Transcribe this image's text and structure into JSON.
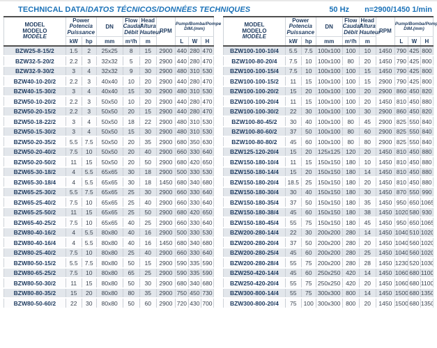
{
  "header": {
    "title_main": "TECHNICAL DATA/",
    "title_intl": "DATOS TÉCNICOS/DONNÉES TECHNIQUES",
    "frequency": "50 Hz",
    "speed": "n=2900/1450 1/min",
    "accent_blue": "#1b72b8",
    "navy_text": "#1d3a5f",
    "alt_row_bg": "#e2e6eb"
  },
  "columns": {
    "model_en": "MODEL",
    "model_es": "MODELO",
    "model_fr": "MODÈLE",
    "power_en": "Power",
    "power_es": "Potencia",
    "power_fr": "Puissance",
    "unit_kw": "kW",
    "unit_hp": "hp",
    "dn": "DN",
    "unit_mm": "mm",
    "flow_en": "Flow",
    "flow_es": "Caudal",
    "flow_fr": "Débit",
    "unit_flow": "m³/h",
    "head_en": "Head",
    "head_es": "Altura",
    "head_fr": "Hauteur",
    "unit_m": "m",
    "rpm": "RPM",
    "dim_title": "Pump/Bomba/Pompe",
    "dim_sub": "DIM.(mm)",
    "dim_l": "L",
    "dim_w": "W",
    "dim_h": "H"
  },
  "left_rows": [
    [
      "BZW25-8-15/2",
      "1.5",
      "2",
      "25x25",
      "8",
      "15",
      "2900",
      "440",
      "280",
      "470"
    ],
    [
      "BZW32-5-20/2",
      "2.2",
      "3",
      "32x32",
      "5",
      "20",
      "2900",
      "440",
      "280",
      "470"
    ],
    [
      "BZW32-9-30/2",
      "3",
      "4",
      "32x32",
      "9",
      "30",
      "2900",
      "480",
      "310",
      "530"
    ],
    [
      "BZW40-10-20/2",
      "2.2",
      "3",
      "40x40",
      "10",
      "20",
      "2900",
      "440",
      "280",
      "470"
    ],
    [
      "BZW40-15-30/2",
      "3",
      "4",
      "40x40",
      "15",
      "30",
      "2900",
      "480",
      "310",
      "530"
    ],
    [
      "BZW50-10-20/2",
      "2.2",
      "3",
      "50x50",
      "10",
      "20",
      "2900",
      "440",
      "280",
      "470"
    ],
    [
      "BZW50-20-15/2",
      "2.2",
      "3",
      "50x50",
      "20",
      "15",
      "2900",
      "440",
      "280",
      "470"
    ],
    [
      "BZW50-18-22/2",
      "3",
      "4",
      "50x50",
      "18",
      "22",
      "2900",
      "480",
      "310",
      "530"
    ],
    [
      "BZW50-15-30/2",
      "3",
      "4",
      "50x50",
      "15",
      "30",
      "2900",
      "480",
      "310",
      "530"
    ],
    [
      "BZW50-20-35/2",
      "5.5",
      "7.5",
      "50x50",
      "20",
      "35",
      "2900",
      "680",
      "350",
      "630"
    ],
    [
      "BZW50-20-40/2",
      "7.5",
      "10",
      "50x50",
      "20",
      "40",
      "2900",
      "660",
      "330",
      "640"
    ],
    [
      "BZW50-20-50/2",
      "11",
      "15",
      "50x50",
      "20",
      "50",
      "2900",
      "680",
      "420",
      "650"
    ],
    [
      "BZW65-30-18/2",
      "4",
      "5.5",
      "65x65",
      "30",
      "18",
      "2900",
      "500",
      "330",
      "530"
    ],
    [
      "BZW65-30-18/4",
      "4",
      "5.5",
      "65x65",
      "30",
      "18",
      "1450",
      "680",
      "340",
      "680"
    ],
    [
      "BZW65-25-30/2",
      "5.5",
      "7.5",
      "65x65",
      "25",
      "30",
      "2900",
      "660",
      "330",
      "640"
    ],
    [
      "BZW65-25-40/2",
      "7.5",
      "10",
      "65x65",
      "25",
      "40",
      "2900",
      "660",
      "330",
      "640"
    ],
    [
      "BZW65-25-50/2",
      "11",
      "15",
      "65x65",
      "25",
      "50",
      "2900",
      "680",
      "420",
      "650"
    ],
    [
      "BZW65-40-25/2",
      "7.5",
      "10",
      "65x65",
      "40",
      "25",
      "2900",
      "660",
      "330",
      "640"
    ],
    [
      "BZW80-40-16/2",
      "4",
      "5.5",
      "80x80",
      "40",
      "16",
      "2900",
      "500",
      "330",
      "530"
    ],
    [
      "BZW80-40-16/4",
      "4",
      "5.5",
      "80x80",
      "40",
      "16",
      "1450",
      "680",
      "340",
      "680"
    ],
    [
      "BZW80-25-40/2",
      "7.5",
      "10",
      "80x80",
      "25",
      "40",
      "2900",
      "660",
      "330",
      "640"
    ],
    [
      "BZW80-50-15/2",
      "5.5",
      "7.5",
      "80x80",
      "50",
      "15",
      "2900",
      "590",
      "335",
      "590"
    ],
    [
      "BZW80-65-25/2",
      "7.5",
      "10",
      "80x80",
      "65",
      "25",
      "2900",
      "590",
      "335",
      "590"
    ],
    [
      "BZW80-50-30/2",
      "11",
      "15",
      "80x80",
      "50",
      "30",
      "2900",
      "680",
      "340",
      "680"
    ],
    [
      "BZW80-80-35/2",
      "15",
      "20",
      "80x80",
      "80",
      "35",
      "2900",
      "750",
      "450",
      "730"
    ],
    [
      "BZW80-50-60/2",
      "22",
      "30",
      "80x80",
      "50",
      "60",
      "2900",
      "720",
      "430",
      "700"
    ]
  ],
  "right_rows": [
    [
      "BZW100-100-10/4",
      "5.5",
      "7.5",
      "100x100",
      "100",
      "10",
      "1450",
      "790",
      "425",
      "800"
    ],
    [
      "BZW100-80-20/4",
      "7.5",
      "10",
      "100x100",
      "80",
      "20",
      "1450",
      "790",
      "425",
      "800"
    ],
    [
      "BZW100-100-15/4",
      "7.5",
      "10",
      "100x100",
      "100",
      "15",
      "1450",
      "790",
      "425",
      "800"
    ],
    [
      "BZW100-100-15/2",
      "11",
      "15",
      "100x100",
      "100",
      "15",
      "2900",
      "790",
      "425",
      "800"
    ],
    [
      "BZW100-100-20/2",
      "15",
      "20",
      "100x100",
      "100",
      "20",
      "2900",
      "860",
      "450",
      "820"
    ],
    [
      "BZW100-100-20/4",
      "11",
      "15",
      "100x100",
      "100",
      "20",
      "1450",
      "810",
      "450",
      "880"
    ],
    [
      "BZW100-100-30/2",
      "22",
      "30",
      "100x100",
      "100",
      "30",
      "2900",
      "860",
      "450",
      "820"
    ],
    [
      "BZW100-80-45/2",
      "30",
      "40",
      "100x100",
      "80",
      "45",
      "2900",
      "825",
      "550",
      "840"
    ],
    [
      "BZW100-80-60/2",
      "37",
      "50",
      "100x100",
      "80",
      "60",
      "2900",
      "825",
      "550",
      "840"
    ],
    [
      "BZW100-80-80/2",
      "45",
      "60",
      "100x100",
      "80",
      "80",
      "2900",
      "825",
      "550",
      "840"
    ],
    [
      "BZW125-120-20/4",
      "15",
      "20",
      "125x125",
      "120",
      "20",
      "1450",
      "810",
      "450",
      "880"
    ],
    [
      "BZW150-180-10/4",
      "11",
      "15",
      "150x150",
      "180",
      "10",
      "1450",
      "810",
      "450",
      "880"
    ],
    [
      "BZW150-180-14/4",
      "15",
      "20",
      "150x150",
      "180",
      "14",
      "1450",
      "810",
      "450",
      "880"
    ],
    [
      "BZW150-180-20/4",
      "18.5",
      "25",
      "150x150",
      "180",
      "20",
      "1450",
      "810",
      "450",
      "880"
    ],
    [
      "BZW150-180-30/4",
      "30",
      "40",
      "150x150",
      "180",
      "30",
      "1450",
      "870",
      "550",
      "990"
    ],
    [
      "BZW150-180-35/4",
      "37",
      "50",
      "150x150",
      "180",
      "35",
      "1450",
      "950",
      "650",
      "1065"
    ],
    [
      "BZW150-180-38/4",
      "45",
      "60",
      "150x150",
      "180",
      "38",
      "1450",
      "1020",
      "580",
      "930"
    ],
    [
      "BZW150-180-45/4",
      "55",
      "75",
      "150x150",
      "180",
      "45",
      "1450",
      "950",
      "650",
      "1065"
    ],
    [
      "BZW200-280-14/4",
      "22",
      "30",
      "200x200",
      "280",
      "14",
      "1450",
      "1040",
      "510",
      "1020"
    ],
    [
      "BZW200-280-20/4",
      "37",
      "50",
      "200x200",
      "280",
      "20",
      "1450",
      "1040",
      "560",
      "1020"
    ],
    [
      "BZW200-280-25/4",
      "45",
      "60",
      "200x200",
      "280",
      "25",
      "1450",
      "1040",
      "560",
      "1020"
    ],
    [
      "BZW200-280-28/4",
      "55",
      "75",
      "200x200",
      "280",
      "28",
      "1450",
      "1230",
      "520",
      "1030"
    ],
    [
      "BZW250-420-14/4",
      "45",
      "60",
      "250x250",
      "420",
      "14",
      "1450",
      "1060",
      "680",
      "1100"
    ],
    [
      "BZW250-420-20/4",
      "55",
      "75",
      "250x250",
      "420",
      "20",
      "1450",
      "1060",
      "680",
      "1100"
    ],
    [
      "BZW300-800-14/4",
      "55",
      "75",
      "300x300",
      "800",
      "14",
      "1450",
      "1500",
      "680",
      "1350"
    ],
    [
      "BZW300-800-20/4",
      "75",
      "100",
      "300x300",
      "800",
      "20",
      "1450",
      "1500",
      "680",
      "1350"
    ]
  ]
}
